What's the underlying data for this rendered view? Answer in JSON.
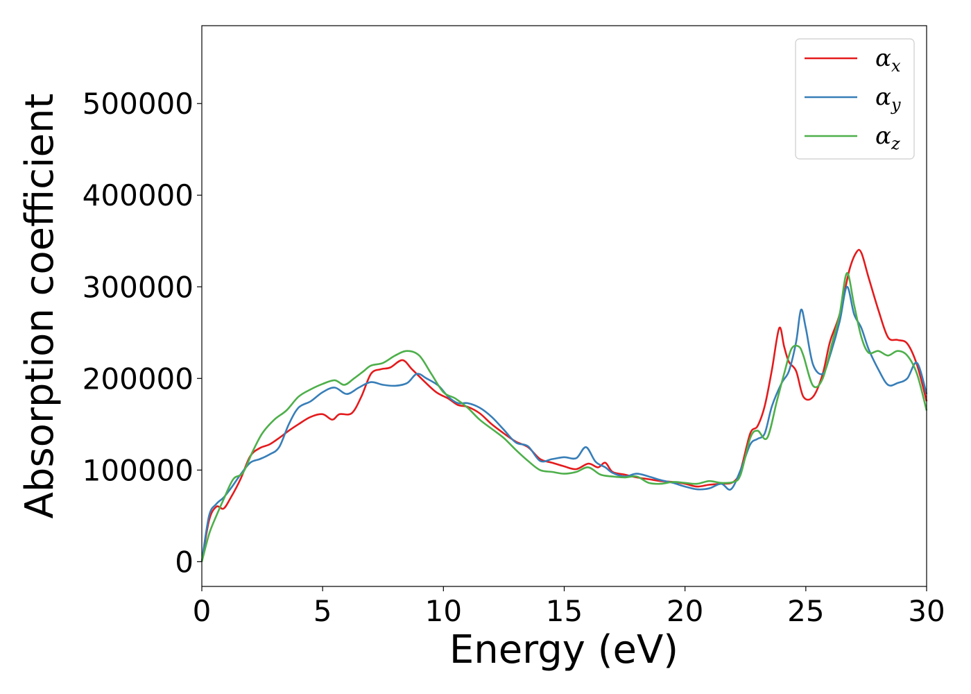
{
  "chart_data": {
    "type": "line",
    "xlabel": "Energy (eV)",
    "ylabel": "Absorption coefficient",
    "xlim": [
      0,
      30
    ],
    "ylim": [
      -27000,
      585000
    ],
    "x_ticks": [
      "0",
      "5",
      "10",
      "15",
      "20",
      "25",
      "30"
    ],
    "y_ticks": [
      "0",
      "100000",
      "200000",
      "300000",
      "400000",
      "500000"
    ],
    "grid": false,
    "legend_position": "top-right",
    "series": [
      {
        "name": "α_x",
        "legend_symbol": "α",
        "legend_sub": "x",
        "color": "#e41a1c",
        "x": [
          0,
          0.3,
          0.6,
          0.9,
          1.2,
          1.6,
          2,
          2.4,
          2.8,
          3.2,
          3.6,
          4,
          4.5,
          5,
          5.4,
          5.7,
          6.2,
          6.6,
          7,
          7.4,
          7.8,
          8.3,
          8.7,
          9.2,
          9.7,
          10.2,
          10.6,
          11,
          11.5,
          12,
          12.5,
          13,
          13.5,
          14,
          14.5,
          15,
          15.5,
          16,
          16.4,
          16.7,
          17,
          17.5,
          18,
          18.5,
          19,
          19.5,
          20,
          20.5,
          21,
          21.5,
          22,
          22.3,
          22.7,
          23,
          23.3,
          23.6,
          23.9,
          24.1,
          24.3,
          24.6,
          24.9,
          25.3,
          25.7,
          26,
          26.4,
          26.8,
          27.1,
          27.3,
          27.6,
          28,
          28.4,
          28.8,
          29.2,
          29.6,
          30
        ],
        "y": [
          0,
          45000,
          60000,
          58000,
          70000,
          90000,
          115000,
          124000,
          128000,
          135000,
          143000,
          150000,
          158000,
          161000,
          155000,
          161000,
          162000,
          180000,
          205000,
          210000,
          212000,
          220000,
          210000,
          197000,
          185000,
          178000,
          171000,
          169000,
          162000,
          150000,
          140000,
          131000,
          125000,
          112000,
          108000,
          104000,
          101000,
          107000,
          103000,
          108000,
          98000,
          95000,
          92000,
          90000,
          88000,
          87000,
          85000,
          82000,
          84000,
          85000,
          87000,
          100000,
          140000,
          148000,
          170000,
          210000,
          255000,
          235000,
          218000,
          208000,
          180000,
          180000,
          205000,
          240000,
          270000,
          318000,
          338000,
          337000,
          310000,
          275000,
          245000,
          242000,
          238000,
          215000,
          175000
        ]
      },
      {
        "name": "α_y",
        "legend_symbol": "α",
        "legend_sub": "y",
        "color": "#377eb8",
        "x": [
          0,
          0.3,
          0.6,
          0.9,
          1.2,
          1.6,
          2,
          2.4,
          2.8,
          3.2,
          3.6,
          4,
          4.5,
          5,
          5.5,
          6,
          6.5,
          7,
          7.5,
          8,
          8.5,
          8.9,
          9.3,
          9.8,
          10.2,
          10.6,
          11,
          11.5,
          12,
          12.5,
          13,
          13.5,
          14,
          14.5,
          15,
          15.5,
          15.9,
          16.3,
          16.7,
          17,
          17.5,
          18,
          18.5,
          19,
          19.5,
          20,
          20.5,
          21,
          21.5,
          21.9,
          22.3,
          22.7,
          23,
          23.3,
          23.6,
          24,
          24.3,
          24.6,
          24.8,
          25,
          25.3,
          25.7,
          26,
          26.4,
          26.7,
          27,
          27.3,
          27.6,
          28,
          28.4,
          28.8,
          29.2,
          29.6,
          30
        ],
        "y": [
          0,
          50000,
          63000,
          70000,
          80000,
          95000,
          108000,
          112000,
          117000,
          125000,
          150000,
          168000,
          175000,
          185000,
          190000,
          183000,
          190000,
          196000,
          193000,
          192000,
          195000,
          205000,
          200000,
          192000,
          180000,
          173000,
          173000,
          168000,
          158000,
          144000,
          130000,
          126000,
          110000,
          112000,
          114000,
          113000,
          125000,
          109000,
          103000,
          97000,
          93000,
          96000,
          93000,
          89000,
          86000,
          82000,
          79000,
          80000,
          85000,
          79000,
          100000,
          128000,
          134000,
          140000,
          170000,
          195000,
          208000,
          240000,
          275000,
          255000,
          215000,
          205000,
          225000,
          262000,
          300000,
          270000,
          255000,
          232000,
          210000,
          193000,
          195000,
          200000,
          217000,
          183000
        ]
      },
      {
        "name": "α_z",
        "legend_symbol": "α",
        "legend_sub": "z",
        "color": "#4daf4a",
        "x": [
          0,
          0.3,
          0.6,
          0.9,
          1.3,
          1.7,
          2.1,
          2.5,
          3,
          3.5,
          4,
          4.5,
          5,
          5.5,
          5.9,
          6.3,
          6.7,
          7,
          7.5,
          8,
          8.5,
          9,
          9.5,
          10,
          10.5,
          11,
          11.5,
          12,
          12.5,
          13,
          13.5,
          14,
          14.5,
          15,
          15.5,
          16,
          16.5,
          17,
          17.5,
          18,
          18.5,
          19,
          19.5,
          20,
          20.5,
          21,
          21.5,
          22,
          22.3,
          22.7,
          23,
          23.4,
          23.8,
          24.1,
          24.4,
          24.7,
          24.9,
          25.3,
          25.7,
          26.1,
          26.4,
          26.7,
          27,
          27.3,
          27.6,
          28,
          28.4,
          28.8,
          29.2,
          29.6,
          30
        ],
        "y": [
          0,
          30000,
          50000,
          68000,
          90000,
          97000,
          120000,
          140000,
          155000,
          165000,
          180000,
          188000,
          194000,
          198000,
          193000,
          200000,
          208000,
          214000,
          217000,
          225000,
          230000,
          225000,
          205000,
          185000,
          178000,
          168000,
          155000,
          145000,
          135000,
          122000,
          110000,
          100000,
          98000,
          96000,
          98000,
          103000,
          95000,
          93000,
          92000,
          93000,
          86000,
          85000,
          87000,
          86000,
          85000,
          88000,
          86000,
          87000,
          95000,
          135000,
          143000,
          135000,
          175000,
          205000,
          232000,
          235000,
          225000,
          192000,
          200000,
          240000,
          270000,
          315000,
          280000,
          245000,
          228000,
          230000,
          225000,
          230000,
          225000,
          205000,
          165000
        ]
      }
    ]
  }
}
